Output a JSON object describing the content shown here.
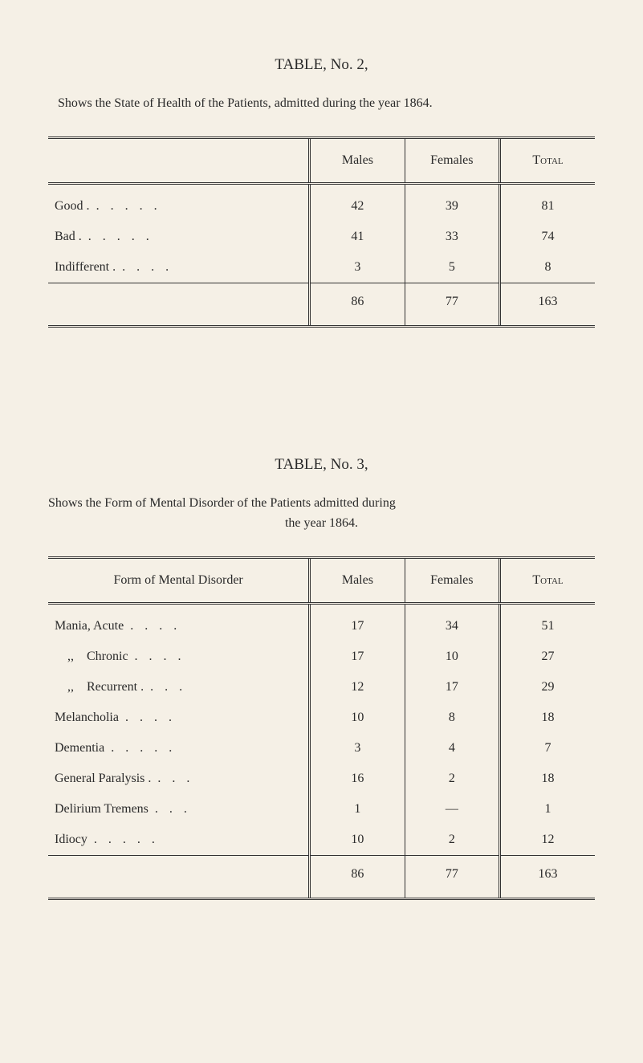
{
  "table2": {
    "title": "TABLE, No. 2,",
    "subtitle": "Shows the State of Health of the Patients, admitted during the year 1864.",
    "headers": {
      "label": "",
      "males": "Males",
      "females": "Females",
      "total": "Total"
    },
    "rows": [
      {
        "label": "Good .",
        "dots": ".....",
        "males": 42,
        "females": 39,
        "total": 81
      },
      {
        "label": "Bad  .",
        "dots": ".....",
        "males": 41,
        "females": 33,
        "total": 74
      },
      {
        "label": "Indifferent .",
        "dots": "....",
        "males": 3,
        "females": 5,
        "total": 8
      }
    ],
    "totals": {
      "males": 86,
      "females": 77,
      "total": 163
    }
  },
  "table3": {
    "title": "TABLE, No. 3,",
    "subtitle_pre": "Shows the Form of Mental Disorder of the Patients admitted during",
    "subtitle_line2": "the year 1864.",
    "headers": {
      "label": "Form of Mental Disorder",
      "males": "Males",
      "females": "Females",
      "total": "Total"
    },
    "rows": [
      {
        "label": "Mania, Acute",
        "dots": "....",
        "males": 17,
        "females": 34,
        "total": 51
      },
      {
        "label": "    ,,    Chronic",
        "dots": "....",
        "males": 17,
        "females": 10,
        "total": 27
      },
      {
        "label": "    ,,    Recurrent .",
        "dots": "...",
        "males": 12,
        "females": 17,
        "total": 29
      },
      {
        "label": "Melancholia",
        "dots": "....",
        "males": 10,
        "females": 8,
        "total": 18
      },
      {
        "label": "Dementia",
        "dots": ".....",
        "males": 3,
        "females": 4,
        "total": 7
      },
      {
        "label": "General Paralysis .",
        "dots": "...",
        "males": 16,
        "females": 2,
        "total": 18
      },
      {
        "label": "Delirium Tremens",
        "dots": "...",
        "males": 1,
        "females": "—",
        "total": 1
      },
      {
        "label": "Idiocy",
        "dots": ".....",
        "males": 10,
        "females": 2,
        "total": 12
      }
    ],
    "totals": {
      "males": 86,
      "females": 77,
      "total": 163
    }
  },
  "style": {
    "background": "#f5f0e6",
    "text_color": "#2a2a2a",
    "rule_color": "#333333",
    "font_family": "Georgia, 'Times New Roman', serif",
    "title_fontsize": 19,
    "body_fontsize": 16
  }
}
